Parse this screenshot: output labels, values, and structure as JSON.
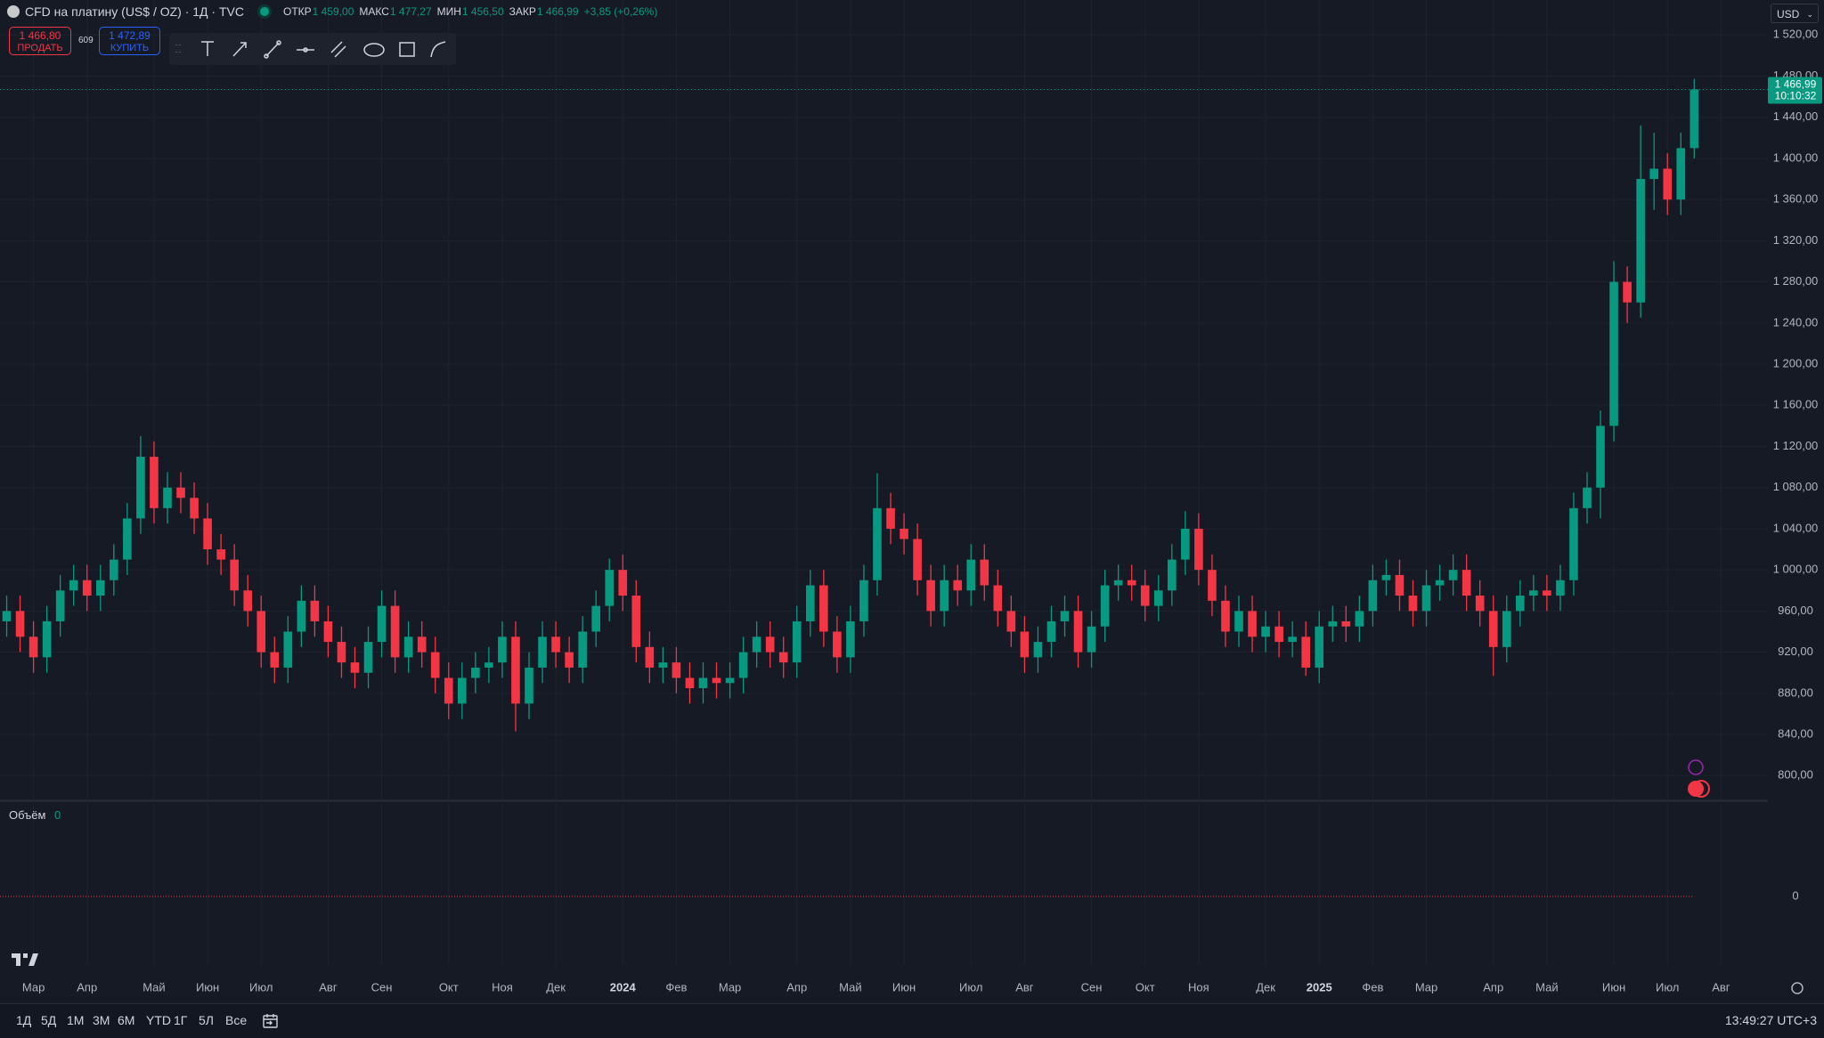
{
  "chart_data": {
    "type": "candlestick",
    "categories": [
      null,
      null,
      "Мар",
      null,
      null,
      null,
      "Апр",
      null,
      null,
      null,
      null,
      "Май",
      null,
      null,
      null,
      "Июн",
      null,
      null,
      null,
      "Июл",
      null,
      null,
      null,
      null,
      "Авг",
      null,
      null,
      null,
      "Сен",
      null,
      null,
      null,
      null,
      "Окт",
      null,
      null,
      null,
      "Ноя",
      null,
      null,
      null,
      "Дек",
      null,
      null,
      null,
      null,
      "2024",
      null,
      null,
      null,
      "Фев",
      null,
      null,
      null,
      "Мар",
      null,
      null,
      null,
      null,
      "Апр",
      null,
      null,
      null,
      "Май",
      null,
      null,
      null,
      "Июн",
      null,
      null,
      null,
      null,
      "Июл",
      null,
      null,
      null,
      "Авг",
      null,
      null,
      null,
      null,
      "Сен",
      null,
      null,
      null,
      "Окт",
      null,
      null,
      null,
      "Ноя",
      null,
      null,
      null,
      null,
      "Дек",
      null,
      null,
      null,
      "2025",
      null,
      null,
      null,
      "Фев",
      null,
      null,
      null,
      "Мар",
      null,
      null,
      null,
      null,
      "Апр",
      null,
      null,
      null,
      "Май",
      null,
      null,
      null,
      null,
      "Июн",
      null,
      null,
      null,
      "Июл",
      null,
      null,
      null,
      "Авг",
      null,
      null,
      null
    ],
    "open": [
      950,
      960,
      935,
      915,
      950,
      980,
      990,
      975,
      990,
      1010,
      1050,
      1110,
      1060,
      1080,
      1070,
      1050,
      1020,
      1010,
      980,
      960,
      920,
      905,
      940,
      970,
      950,
      930,
      910,
      900,
      930,
      965,
      915,
      935,
      920,
      895,
      870,
      895,
      905,
      910,
      935,
      870,
      905,
      935,
      920,
      905,
      940,
      965,
      1000,
      975,
      925,
      905,
      910,
      895,
      885,
      895,
      890,
      895,
      920,
      935,
      920,
      910,
      950,
      985,
      940,
      915,
      950,
      990,
      1060,
      1040,
      1030,
      990,
      960,
      990,
      980,
      1010,
      985,
      960,
      940,
      915,
      930,
      950,
      960,
      920,
      945,
      985,
      990,
      985,
      965,
      980,
      1010,
      1040,
      1000,
      970,
      940,
      960,
      935,
      945,
      930,
      935,
      905,
      945,
      950,
      945,
      960,
      990,
      995,
      975,
      960,
      985,
      990,
      1000,
      975,
      960,
      925,
      960,
      975,
      980,
      975,
      990,
      1060,
      1080,
      1140,
      1280,
      1260,
      1380,
      1390,
      1360,
      1410,
      null,
      null,
      null,
      null,
      null
    ],
    "high": [
      975,
      975,
      950,
      965,
      995,
      1005,
      1005,
      1005,
      1025,
      1065,
      1130,
      1125,
      1095,
      1095,
      1085,
      1065,
      1035,
      1025,
      995,
      975,
      935,
      955,
      985,
      985,
      965,
      945,
      925,
      945,
      980,
      980,
      950,
      950,
      935,
      910,
      910,
      920,
      925,
      950,
      950,
      920,
      950,
      950,
      935,
      955,
      980,
      1011,
      1015,
      990,
      940,
      925,
      925,
      910,
      910,
      910,
      910,
      935,
      950,
      950,
      935,
      965,
      1000,
      1000,
      955,
      965,
      1005,
      1094,
      1075,
      1055,
      1045,
      1005,
      1005,
      1005,
      1025,
      1025,
      1000,
      975,
      955,
      945,
      965,
      975,
      975,
      960,
      1000,
      1005,
      1005,
      1000,
      995,
      1025,
      1057,
      1055,
      1015,
      985,
      975,
      975,
      960,
      960,
      950,
      950,
      960,
      965,
      965,
      975,
      1005,
      1010,
      1010,
      990,
      1000,
      1005,
      1015,
      1015,
      990,
      975,
      975,
      990,
      995,
      995,
      1005,
      1075,
      1095,
      1155,
      1300,
      1295,
      1432,
      1425,
      1405,
      1425,
      1477.27,
      null,
      null,
      null,
      null,
      null
    ],
    "low": [
      935,
      920,
      900,
      900,
      935,
      965,
      960,
      960,
      975,
      995,
      1035,
      1045,
      1045,
      1055,
      1035,
      1005,
      995,
      965,
      945,
      905,
      890,
      890,
      925,
      935,
      915,
      895,
      885,
      885,
      915,
      900,
      900,
      905,
      880,
      855,
      855,
      880,
      890,
      895,
      843,
      855,
      890,
      905,
      890,
      890,
      925,
      950,
      960,
      910,
      890,
      890,
      880,
      870,
      870,
      875,
      875,
      880,
      905,
      905,
      895,
      895,
      935,
      925,
      900,
      900,
      935,
      975,
      1025,
      1015,
      975,
      945,
      945,
      965,
      965,
      970,
      945,
      925,
      900,
      900,
      915,
      935,
      905,
      905,
      930,
      970,
      970,
      950,
      950,
      965,
      995,
      985,
      955,
      925,
      925,
      920,
      920,
      915,
      915,
      897,
      890,
      930,
      930,
      930,
      945,
      975,
      960,
      945,
      945,
      970,
      975,
      960,
      945,
      897,
      910,
      945,
      960,
      960,
      960,
      975,
      1045,
      1050,
      1125,
      1240,
      1245,
      1350,
      1345,
      1345,
      1400,
      null,
      null,
      null,
      null,
      null
    ],
    "close": [
      960,
      935,
      915,
      950,
      980,
      990,
      975,
      990,
      1010,
      1050,
      1110,
      1060,
      1080,
      1070,
      1050,
      1020,
      1010,
      980,
      960,
      920,
      905,
      940,
      970,
      950,
      930,
      910,
      900,
      930,
      965,
      915,
      935,
      920,
      895,
      870,
      895,
      905,
      910,
      935,
      870,
      905,
      935,
      920,
      905,
      940,
      965,
      1000,
      975,
      925,
      905,
      910,
      895,
      885,
      895,
      890,
      895,
      920,
      935,
      920,
      910,
      950,
      985,
      940,
      915,
      950,
      990,
      1060,
      1040,
      1030,
      990,
      960,
      990,
      980,
      1010,
      985,
      960,
      940,
      915,
      930,
      950,
      960,
      920,
      945,
      985,
      990,
      985,
      965,
      980,
      1010,
      1040,
      1000,
      970,
      940,
      960,
      935,
      945,
      930,
      935,
      905,
      945,
      950,
      945,
      960,
      990,
      995,
      975,
      960,
      985,
      990,
      1000,
      975,
      960,
      925,
      960,
      975,
      980,
      975,
      990,
      1060,
      1080,
      1140,
      1280,
      1260,
      1380,
      1390,
      1360,
      1410,
      1466.99,
      null,
      null,
      null,
      null,
      null
    ],
    "up_color": "#089981",
    "down_color": "#f23645",
    "ylim": [
      776,
      1554
    ],
    "yticks": [
      {
        "value": 800,
        "label": "800,00"
      },
      {
        "value": 840,
        "label": "840,00"
      },
      {
        "value": 880,
        "label": "880,00"
      },
      {
        "value": 920,
        "label": "920,00"
      },
      {
        "value": 960,
        "label": "960,00"
      },
      {
        "value": 1000,
        "label": "1 000,00"
      },
      {
        "value": 1040,
        "label": "1 040,00"
      },
      {
        "value": 1080,
        "label": "1 080,00"
      },
      {
        "value": 1120,
        "label": "1 120,00"
      },
      {
        "value": 1160,
        "label": "1 160,00"
      },
      {
        "value": 1200,
        "label": "1 200,00"
      },
      {
        "value": 1240,
        "label": "1 240,00"
      },
      {
        "value": 1280,
        "label": "1 280,00"
      },
      {
        "value": 1320,
        "label": "1 320,00"
      },
      {
        "value": 1360,
        "label": "1 360,00"
      },
      {
        "value": 1400,
        "label": "1 400,00"
      },
      {
        "value": 1440,
        "label": "1 440,00"
      },
      {
        "value": 1480,
        "label": "1 480,00"
      },
      {
        "value": 1520,
        "label": "1 520,00"
      }
    ],
    "grid": true,
    "price_label": {
      "value": 1466.99,
      "label": "1 466,99"
    },
    "countdown": "10:10:32"
  },
  "header": {
    "title": "CFD на платину (US$ / OZ) · 1Д · TVC",
    "open_label": "ОТКР",
    "open": "1 459,00",
    "high_label": "МАКС",
    "high": "1 477,27",
    "low_label": "МИН",
    "low": "1 456,50",
    "close_label": "ЗАКР",
    "close": "1 466,99",
    "change": "+3,85 (+0,26%)"
  },
  "trade": {
    "sell_price": "1 466,80",
    "sell": "ПРОДАТЬ",
    "spread": "609",
    "buy_price": "1 472,89",
    "buy": "КУПИТЬ"
  },
  "currency": "USD",
  "volume": {
    "title": "Объём",
    "value": 0,
    "axis_tick": 0
  },
  "toolbar": {
    "ranges": [
      "1Д",
      "5Д",
      "1М",
      "3М",
      "6М",
      "YTD",
      "1Г",
      "5Л",
      "Все"
    ],
    "clock": "13:49:27 UTC+3"
  }
}
